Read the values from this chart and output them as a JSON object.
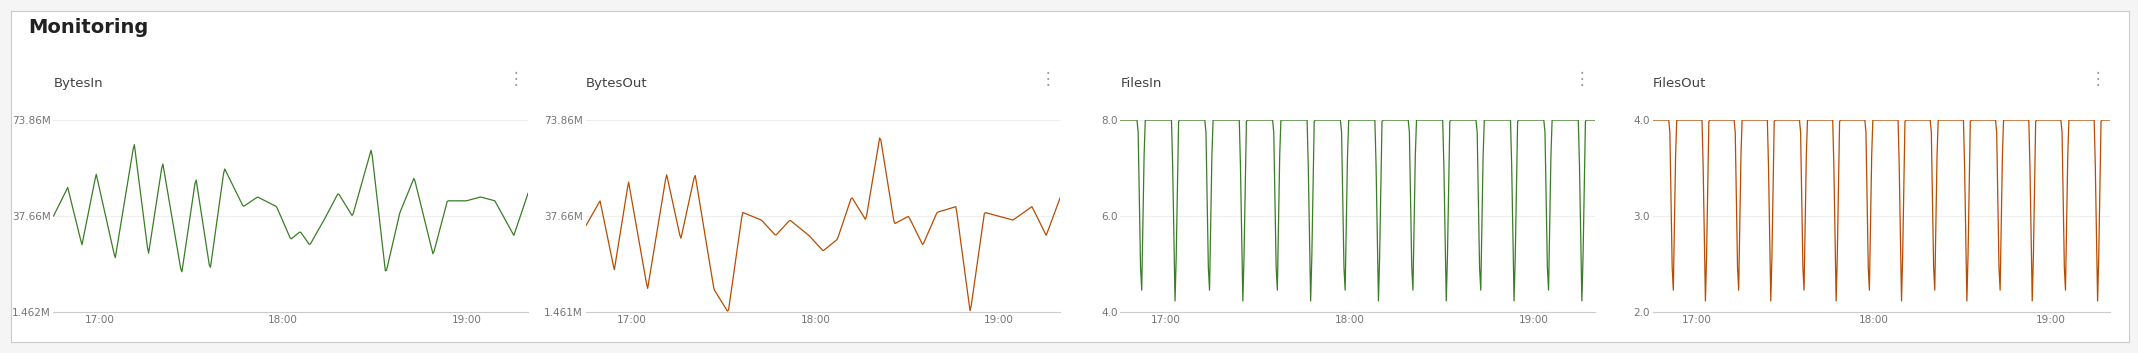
{
  "title": "Monitoring",
  "panels": [
    {
      "name": "BytesIn",
      "color": "#3a7d27",
      "yticks": [
        "1.462M",
        "37.66M",
        "73.86M"
      ],
      "yvalues": [
        1462000,
        37660000,
        73860000
      ],
      "ylim": [
        1462000,
        73860000
      ],
      "xticks": [
        "17:00",
        "18:00",
        "19:00"
      ]
    },
    {
      "name": "BytesOut",
      "color": "#b84c00",
      "yticks": [
        "1.461M",
        "37.66M",
        "73.86M"
      ],
      "yvalues": [
        1461000,
        37660000,
        73860000
      ],
      "ylim": [
        1461000,
        73860000
      ],
      "xticks": [
        "17:00",
        "18:00",
        "19:00"
      ]
    },
    {
      "name": "FilesIn",
      "color": "#3a7d27",
      "yticks": [
        "4.0",
        "6.0",
        "8.0"
      ],
      "yvalues": [
        4.0,
        6.0,
        8.0
      ],
      "ylim": [
        4.0,
        8.0
      ],
      "xticks": [
        "17:00",
        "18:00",
        "19:00"
      ]
    },
    {
      "name": "FilesOut",
      "color": "#b84c00",
      "yticks": [
        "2.0",
        "3.0",
        "4.0"
      ],
      "yvalues": [
        2.0,
        3.0,
        4.0
      ],
      "ylim": [
        2.0,
        4.0
      ],
      "xticks": [
        "17:00",
        "18:00",
        "19:00"
      ]
    }
  ],
  "bytesIn_x": [
    0.0,
    0.03,
    0.06,
    0.09,
    0.13,
    0.17,
    0.2,
    0.23,
    0.27,
    0.3,
    0.33,
    0.36,
    0.4,
    0.43,
    0.47,
    0.5,
    0.52,
    0.54,
    0.57,
    0.6,
    0.63,
    0.67,
    0.7,
    0.73,
    0.76,
    0.8,
    0.83,
    0.87,
    0.9,
    0.93,
    0.97,
    1.0
  ],
  "bytesIn_y": [
    0.5,
    0.65,
    0.35,
    0.72,
    0.28,
    0.88,
    0.3,
    0.78,
    0.2,
    0.7,
    0.22,
    0.75,
    0.55,
    0.6,
    0.55,
    0.38,
    0.42,
    0.35,
    0.48,
    0.62,
    0.5,
    0.85,
    0.2,
    0.52,
    0.7,
    0.3,
    0.58,
    0.58,
    0.6,
    0.58,
    0.4,
    0.62
  ],
  "bytesOut_x": [
    0.0,
    0.03,
    0.06,
    0.09,
    0.13,
    0.17,
    0.2,
    0.23,
    0.27,
    0.3,
    0.33,
    0.37,
    0.4,
    0.43,
    0.47,
    0.5,
    0.53,
    0.56,
    0.59,
    0.62,
    0.65,
    0.68,
    0.71,
    0.74,
    0.78,
    0.81,
    0.84,
    0.87,
    0.9,
    0.94,
    0.97,
    1.0
  ],
  "bytesOut_y": [
    0.45,
    0.58,
    0.22,
    0.68,
    0.12,
    0.72,
    0.38,
    0.72,
    0.12,
    0.0,
    0.52,
    0.48,
    0.4,
    0.48,
    0.4,
    0.32,
    0.38,
    0.6,
    0.48,
    0.92,
    0.46,
    0.5,
    0.35,
    0.52,
    0.55,
    0.0,
    0.52,
    0.5,
    0.48,
    0.55,
    0.4,
    0.6
  ],
  "bg_color": "#f5f5f5",
  "panel_bg": "#ffffff",
  "title_fontsize": 14,
  "tick_fontsize": 7.5,
  "n_files_cycles": 14
}
